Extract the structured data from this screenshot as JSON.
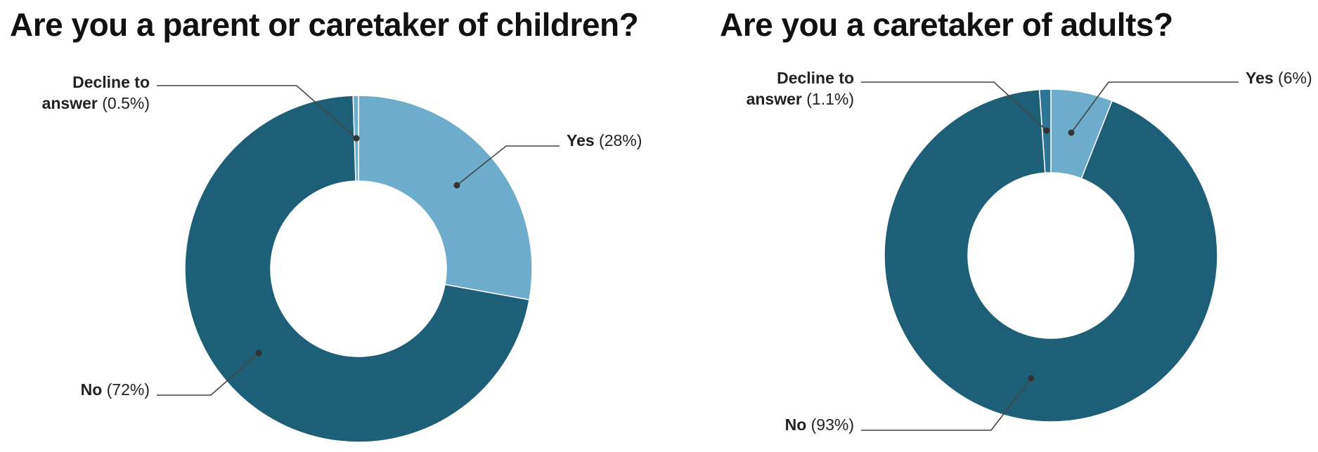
{
  "chart_data": [
    {
      "type": "pie",
      "title": "Are you a parent or caretaker of children?",
      "slices": [
        {
          "name": "Yes",
          "value": 28,
          "value_label": "(28%)",
          "color": "#6eaccb"
        },
        {
          "name": "No",
          "value": 72,
          "value_label": "(72%)",
          "color": "#1e5f78"
        },
        {
          "name": "Decline to answer",
          "value": 0.5,
          "value_label": "(0.5%)",
          "color": "#6eaccb",
          "name_lines": [
            "Decline to",
            "answer"
          ]
        }
      ]
    },
    {
      "type": "pie",
      "title": "Are you a caretaker of adults?",
      "slices": [
        {
          "name": "Yes",
          "value": 6,
          "value_label": "(6%)",
          "color": "#6eaccb"
        },
        {
          "name": "No",
          "value": 93,
          "value_label": "(93%)",
          "color": "#1e5f78"
        },
        {
          "name": "Decline to answer",
          "value": 1.1,
          "value_label": "(1.1%)",
          "color": "#2d7594",
          "name_lines": [
            "Decline to",
            "answer"
          ]
        }
      ]
    }
  ]
}
